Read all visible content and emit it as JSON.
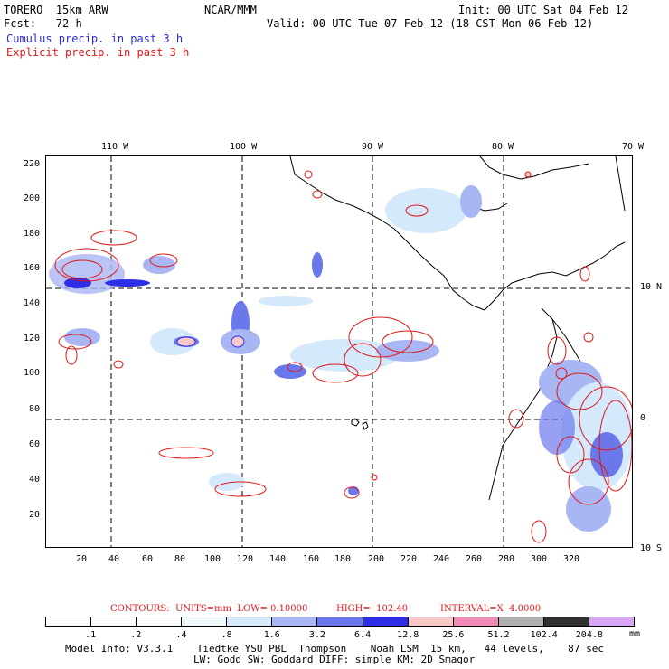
{
  "header": {
    "model": "TORERO  15km ARW",
    "org": "NCAR/MMM",
    "init": "Init: 00 UTC Sat 04 Feb 12",
    "fcst": "Fcst:   72 h",
    "valid": "Valid: 00 UTC Tue 07 Feb 12 (18 CST Mon 06 Feb 12)",
    "field1": "Cumulus precip. in past 3 h",
    "field2": "Explicit precip. in past 3 h"
  },
  "axes": {
    "top_ticks": [
      "110 W",
      "100 W",
      "90 W",
      "80 W",
      "70 W"
    ],
    "right_ticks": [
      "10 N",
      "0",
      "10 S"
    ],
    "left_ticks": [
      "220",
      "200",
      "180",
      "160",
      "140",
      "120",
      "100",
      "80",
      "60",
      "40",
      "20"
    ],
    "bottom_ticks": [
      "20",
      "40",
      "60",
      "80",
      "100",
      "120",
      "140",
      "160",
      "180",
      "200",
      "220",
      "240",
      "260",
      "280",
      "300",
      "320"
    ]
  },
  "contours_caption": {
    "units": "CONTOURS:  UNITS=mm  LOW= 0.10000",
    "high": "HIGH=  102.40",
    "interval": "INTERVAL=X  4.0000"
  },
  "legend": {
    "labels": [
      ".1",
      ".2",
      ".4",
      ".8",
      "1.6",
      "3.2",
      "6.4",
      "12.8",
      "25.6",
      "51.2",
      "102.4",
      "204.8"
    ],
    "unit": "mm",
    "colors": [
      "#ffffff",
      "#ffffff",
      "#ffffff",
      "#f0fafc",
      "#d4e9fb",
      "#a9b6f4",
      "#6b78ec",
      "#2e2ee6",
      "#f7c8c6",
      "#f08bb8",
      "#b0b0b0",
      "#303030",
      "#d9a6f5"
    ]
  },
  "footer": {
    "line1": "Model Info: V3.3.1    Tiedtke YSU PBL  Thompson    Noah LSM  15 km,   44 levels,    87 sec",
    "line2": "LW: Godd SW: Goddard DIFF: simple KM: 2D Smagor"
  }
}
